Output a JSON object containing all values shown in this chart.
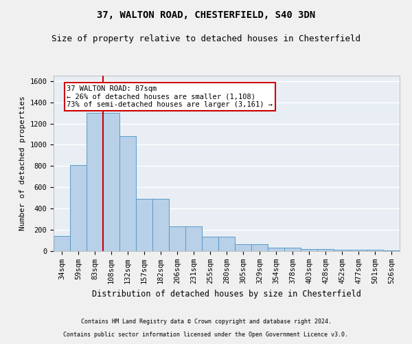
{
  "title1": "37, WALTON ROAD, CHESTERFIELD, S40 3DN",
  "title2": "Size of property relative to detached houses in Chesterfield",
  "xlabel": "Distribution of detached houses by size in Chesterfield",
  "ylabel": "Number of detached properties",
  "footer1": "Contains HM Land Registry data © Crown copyright and database right 2024.",
  "footer2": "Contains public sector information licensed under the Open Government Licence v3.0.",
  "bin_labels": [
    "34sqm",
    "59sqm",
    "83sqm",
    "108sqm",
    "132sqm",
    "157sqm",
    "182sqm",
    "206sqm",
    "231sqm",
    "255sqm",
    "280sqm",
    "305sqm",
    "329sqm",
    "354sqm",
    "378sqm",
    "403sqm",
    "428sqm",
    "452sqm",
    "477sqm",
    "501sqm",
    "526sqm"
  ],
  "bar_values": [
    140,
    810,
    1300,
    1300,
    1080,
    490,
    490,
    230,
    230,
    135,
    135,
    65,
    65,
    35,
    35,
    20,
    20,
    10,
    10,
    10,
    5
  ],
  "bar_color": "#b8d0e8",
  "bar_edge_color": "#5a9ac8",
  "red_line_x": 2.5,
  "annotation_text": "37 WALTON ROAD: 87sqm\n← 26% of detached houses are smaller (1,108)\n73% of semi-detached houses are larger (3,161) →",
  "annotation_box_color": "#ffffff",
  "annotation_border_color": "#cc0000",
  "ylim": [
    0,
    1650
  ],
  "yticks": [
    0,
    200,
    400,
    600,
    800,
    1000,
    1200,
    1400,
    1600
  ],
  "background_color": "#e8eef4",
  "grid_color": "#ffffff",
  "title_fontsize": 10,
  "subtitle_fontsize": 9,
  "annotation_fontsize": 7.5,
  "tick_fontsize": 7.5,
  "ylabel_fontsize": 8,
  "xlabel_fontsize": 8.5
}
